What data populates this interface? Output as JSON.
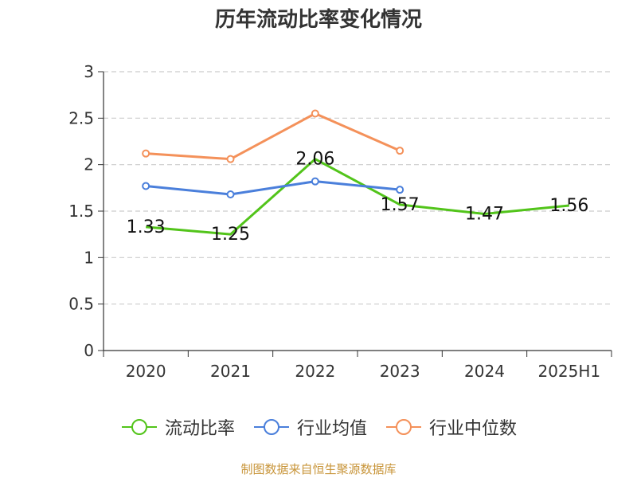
{
  "chart_data": {
    "type": "line",
    "title": "历年流动比率变化情况",
    "categories": [
      "2020",
      "2021",
      "2022",
      "2023",
      "2024",
      "2025H1"
    ],
    "series": [
      {
        "name": "流动比率",
        "color": "#52c41a",
        "values": [
          1.33,
          1.25,
          2.06,
          1.57,
          1.47,
          1.56
        ],
        "data_labels": [
          "1.33",
          "1.25",
          "2.06",
          "1.57",
          "1.47",
          "1.56"
        ],
        "markers": false
      },
      {
        "name": "行业均值",
        "color": "#4a7fdb",
        "values": [
          1.77,
          1.68,
          1.82,
          1.73,
          null,
          null
        ],
        "markers": true
      },
      {
        "name": "行业中位数",
        "color": "#f4915a",
        "values": [
          2.12,
          2.06,
          2.55,
          2.15,
          null,
          null
        ],
        "markers": true
      }
    ],
    "y_ticks": [
      "0",
      "0.5",
      "1",
      "1.5",
      "2",
      "2.5",
      "3"
    ],
    "ylim": [
      0,
      3
    ],
    "grid": true,
    "legend_position": "bottom"
  },
  "source": "制图数据来自恒生聚源数据库"
}
